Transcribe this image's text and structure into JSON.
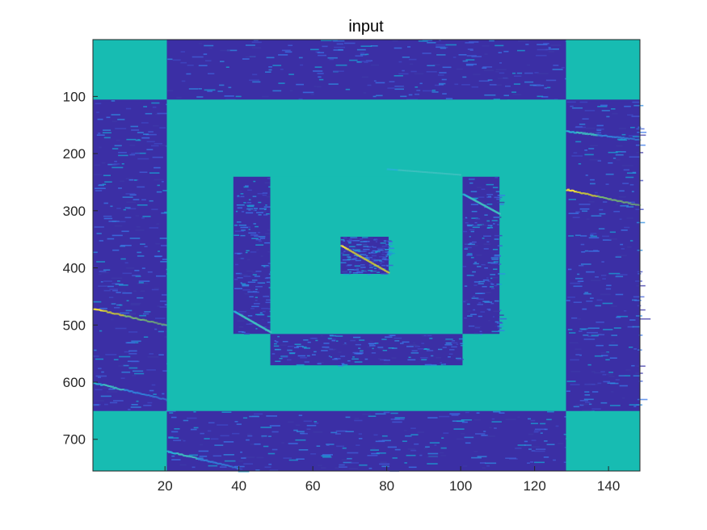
{
  "chart_data": {
    "type": "heatmap",
    "title": "input",
    "xlabel": "",
    "ylabel": "",
    "xlim": [
      0.5,
      148.5
    ],
    "ylim": [
      0.5,
      755.5
    ],
    "y_reversed": true,
    "x_ticks": [
      20,
      40,
      60,
      80,
      100,
      120,
      140
    ],
    "x_tick_labels": [
      "20",
      "40",
      "60",
      "80",
      "100",
      "120",
      "140"
    ],
    "y_ticks": [
      100,
      200,
      300,
      400,
      500,
      600,
      700
    ],
    "y_tick_labels": [
      "100",
      "200",
      "300",
      "400",
      "500",
      "600",
      "700"
    ],
    "grid": false,
    "colormap": "parula",
    "colors": {
      "fill": "#17bcb2",
      "low": "#3b2fa5",
      "axis": "#262626"
    },
    "regions": [
      {
        "kind": "constant",
        "x": [
          0.5,
          20.5
        ],
        "y": [
          0.5,
          105.5
        ]
      },
      {
        "kind": "constant",
        "x": [
          128.5,
          148.5
        ],
        "y": [
          0.5,
          105.5
        ]
      },
      {
        "kind": "constant",
        "x": [
          0.5,
          20.5
        ],
        "y": [
          650.5,
          755.5
        ]
      },
      {
        "kind": "constant",
        "x": [
          128.5,
          148.5
        ],
        "y": [
          650.5,
          755.5
        ]
      },
      {
        "kind": "constant",
        "x": [
          20.5,
          128.5
        ],
        "y": [
          105.5,
          650.5
        ]
      },
      {
        "kind": "data",
        "x": [
          48.5,
          100.5
        ],
        "y": [
          185.5,
          240.5
        ]
      },
      {
        "kind": "data",
        "x": [
          38.5,
          48.5
        ],
        "y": [
          240.5,
          515.5
        ]
      },
      {
        "kind": "data",
        "x": [
          100.5,
          110.5
        ],
        "y": [
          240.5,
          515.5
        ]
      },
      {
        "kind": "data",
        "x": [
          48.5,
          100.5
        ],
        "y": [
          515.5,
          570.5
        ]
      },
      {
        "kind": "constant",
        "x": [
          48.5,
          100.5
        ],
        "y": [
          240.5,
          515.5
        ]
      },
      {
        "kind": "data",
        "x": [
          67.5,
          80.5
        ],
        "y": [
          345.5,
          410.5
        ]
      }
    ],
    "streaks": [
      {
        "x": [
          0.5,
          20.5
        ],
        "y": [
          470,
          500
        ],
        "peak": "yellow"
      },
      {
        "x": [
          128.5,
          148.5
        ],
        "y": [
          262,
          290
        ],
        "peak": "yellow"
      },
      {
        "x": [
          128.5,
          148.5
        ],
        "y": [
          160,
          175
        ],
        "peak": "cyan"
      },
      {
        "x": [
          67.5,
          80.5
        ],
        "y": [
          360,
          408
        ],
        "peak": "yellow"
      },
      {
        "x": [
          38.5,
          48.5
        ],
        "y": [
          475,
          512
        ],
        "peak": "cyan"
      },
      {
        "x": [
          80,
          100
        ],
        "y": [
          226,
          236
        ],
        "peak": "cyan"
      },
      {
        "x": [
          100.5,
          110.5
        ],
        "y": [
          270,
          305
        ],
        "peak": "cyan"
      },
      {
        "x": [
          0.5,
          20.5
        ],
        "y": [
          600,
          630
        ],
        "peak": "cyan"
      },
      {
        "x": [
          20.5,
          40
        ],
        "y": [
          720,
          750
        ],
        "peak": "cyan"
      }
    ]
  }
}
